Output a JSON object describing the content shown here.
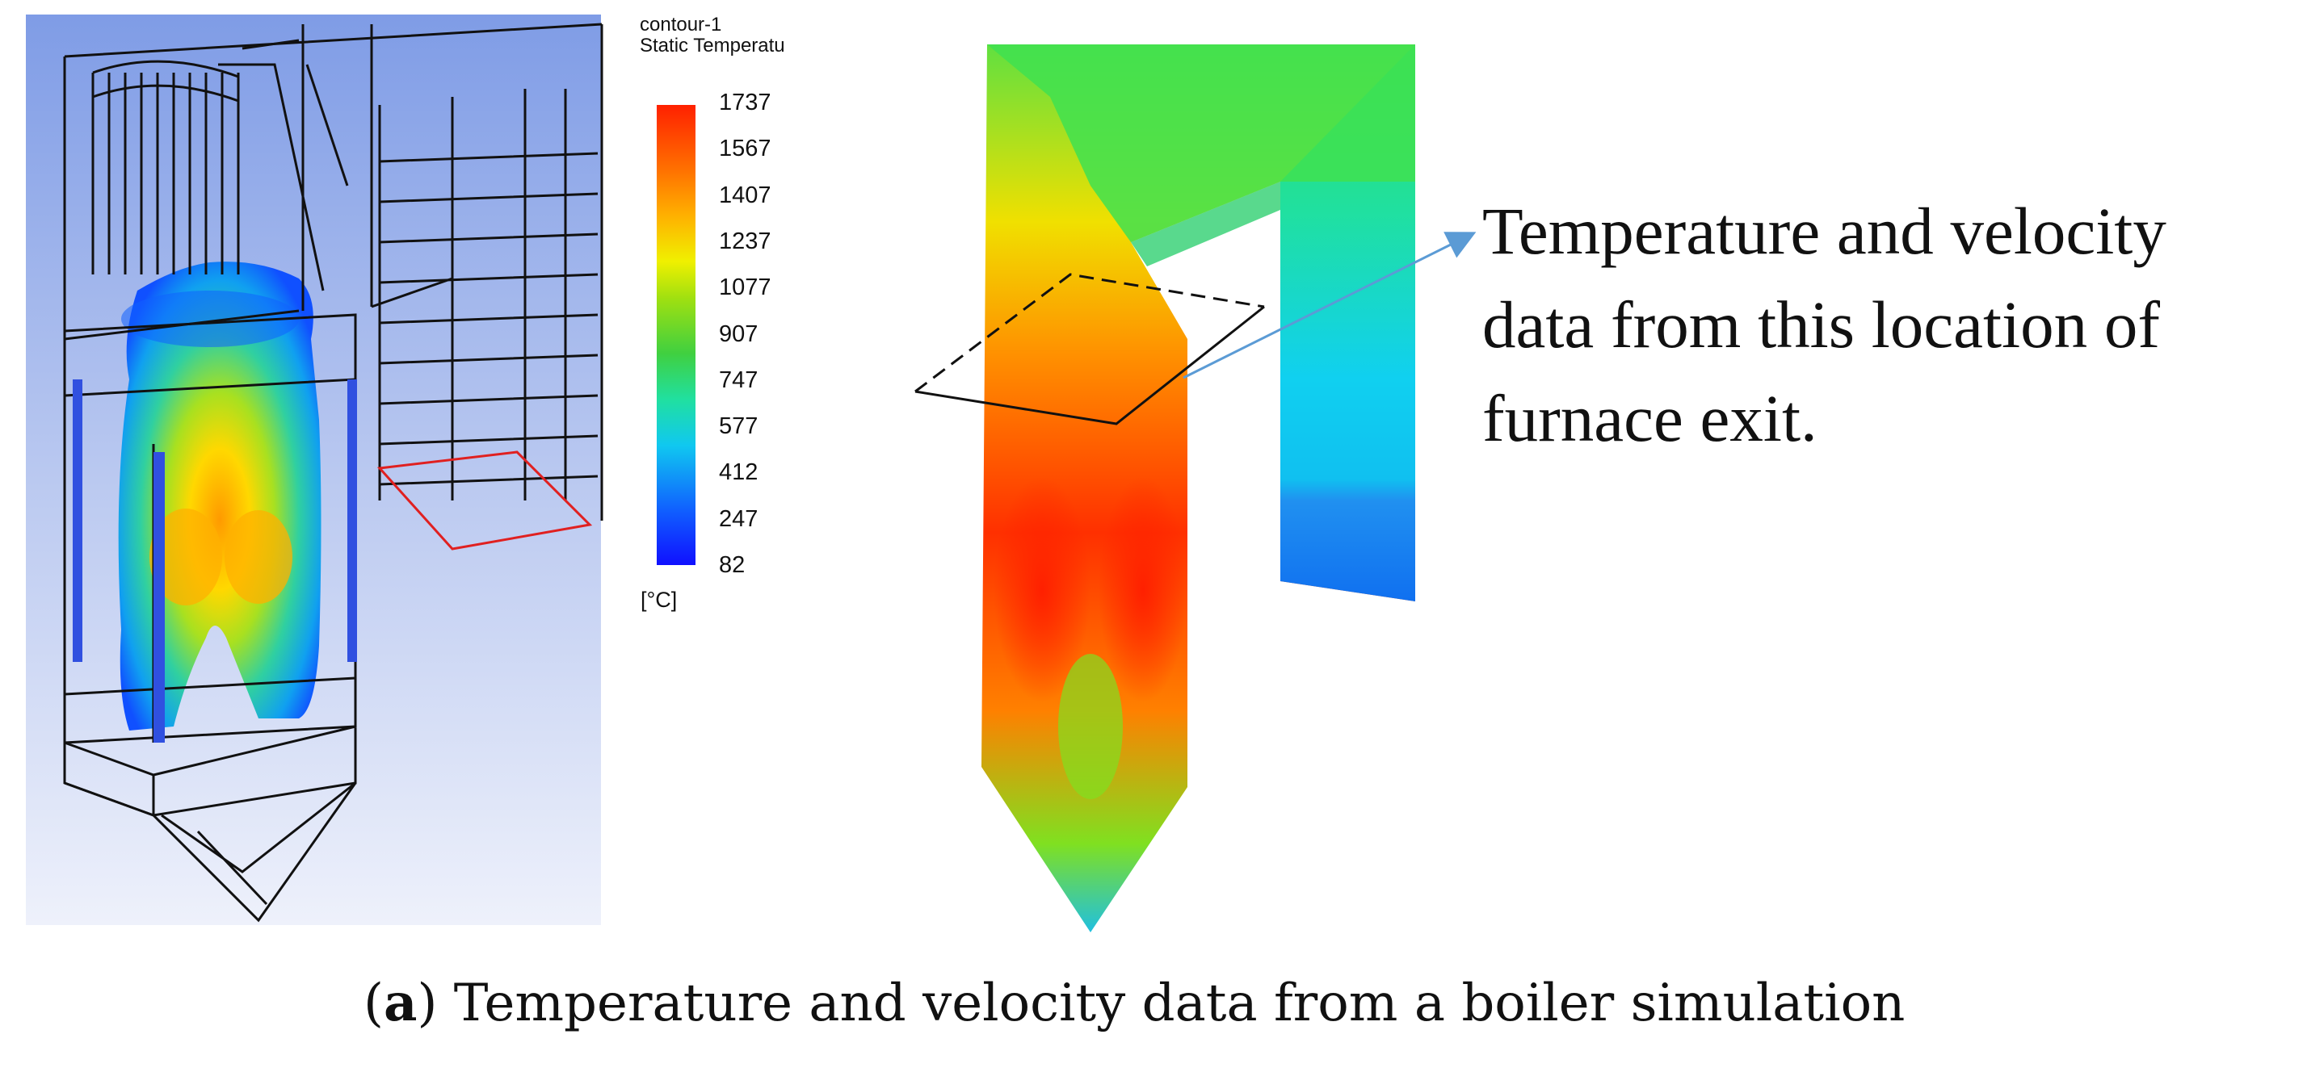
{
  "legend": {
    "title_line1": "contour-1",
    "title_line2": "Static Temperatu",
    "unit": "[°C]",
    "ticks": [
      "1737",
      "1567",
      "1407",
      "1237",
      "1077",
      "907",
      "747",
      "577",
      "412",
      "247",
      "82"
    ]
  },
  "annotation": {
    "line1": "Temperature and velocity",
    "line2": "data from this location of",
    "line3": "furnace exit."
  },
  "caption": {
    "label": "a",
    "text": "Temperature and velocity data from a boiler simulation"
  },
  "colors": {
    "hot": "#ff2000",
    "cold": "#1010ff",
    "arrow": "#5b9bd5",
    "wireframe_highlight": "#e02020"
  }
}
